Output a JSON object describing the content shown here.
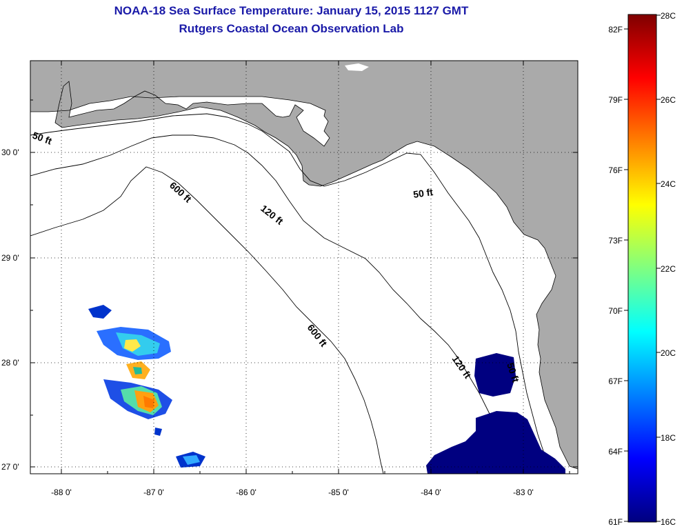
{
  "header": {
    "title": "NOAA-18 Sea Surface Temperature:  January 15, 2015 1127 GMT",
    "subtitle": "Rutgers Coastal Ocean Observation Lab"
  },
  "axes": {
    "lat_labels": [
      "30 0'",
      "29 0'",
      "28 0'",
      "27 0'"
    ],
    "lon_labels": [
      "-88 0'",
      "-87 0'",
      "-86 0'",
      "-85 0'",
      "-84 0'",
      "-83 0'"
    ]
  },
  "contours": {
    "label_50": "50 ft",
    "label_120": "120 ft",
    "label_600": "600 ft"
  },
  "colorbar": {
    "fahrenheit": [
      "82F",
      "79F",
      "76F",
      "73F",
      "70F",
      "67F",
      "64F",
      "61F"
    ],
    "celsius": [
      "28C",
      "26C",
      "24C",
      "22C",
      "20C",
      "18C",
      "16C"
    ]
  },
  "colors": {
    "title": "#1a1aa8",
    "land": "#aaaaaa",
    "ocean": "#ffffff"
  }
}
